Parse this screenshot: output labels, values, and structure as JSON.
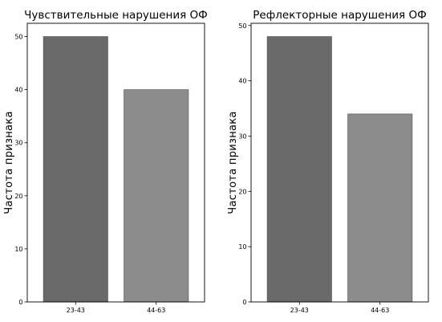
{
  "chart_data": [
    {
      "type": "bar",
      "title": "Чувствительные нарушения ОФ",
      "xlabel": "",
      "ylabel": "Частота признака",
      "categories": [
        "23-43",
        "44-63"
      ],
      "values": [
        50,
        40
      ],
      "bar_colors": [
        "#696969",
        "#8c8c8c"
      ],
      "ylim": [
        0,
        52.5
      ],
      "yticks": [
        0,
        10,
        20,
        30,
        40,
        50
      ],
      "grid": false,
      "legend": "none"
    },
    {
      "type": "bar",
      "title": "Рефлекторные нарушения ОФ",
      "xlabel": "",
      "ylabel": "Частота признака",
      "categories": [
        "23-43",
        "44-63"
      ],
      "values": [
        48,
        34
      ],
      "bar_colors": [
        "#696969",
        "#8c8c8c"
      ],
      "ylim": [
        0,
        50.4
      ],
      "yticks": [
        0,
        10,
        20,
        30,
        40,
        50
      ],
      "grid": false,
      "legend": "none"
    }
  ]
}
